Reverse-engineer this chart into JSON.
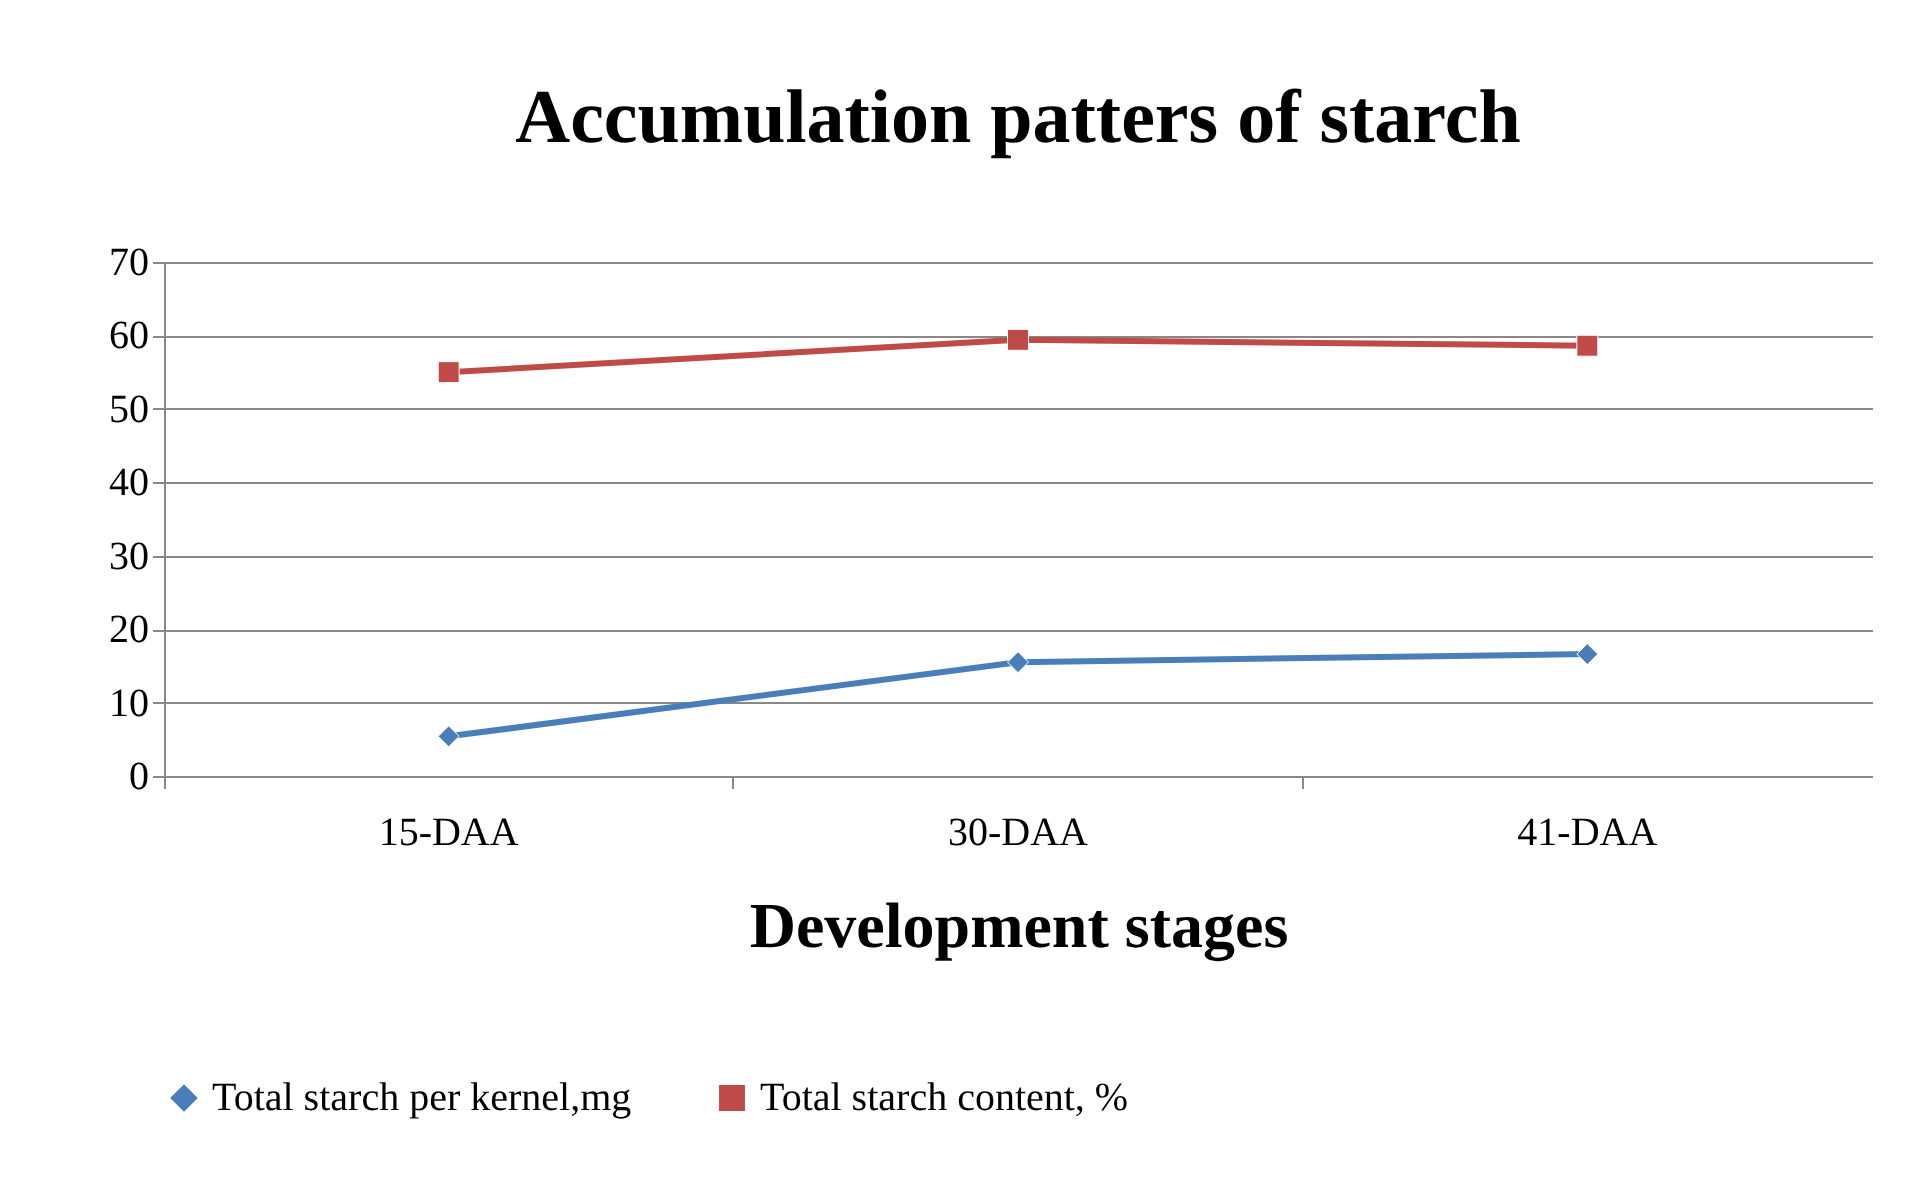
{
  "chart_data": {
    "type": "line",
    "title": "Accumulation patters of starch",
    "xlabel": "Development stages",
    "categories": [
      "15-DAA",
      "30-DAA",
      "41-DAA"
    ],
    "series": [
      {
        "name": "Total starch per kernel,mg",
        "color": "#4a7ebb",
        "marker": "diamond",
        "values": [
          5.4,
          15.5,
          16.6
        ]
      },
      {
        "name": "Total starch content, %",
        "color": "#be4b48",
        "marker": "square",
        "values": [
          55.0,
          59.4,
          58.6
        ]
      }
    ],
    "ylim": [
      0,
      70
    ],
    "yticks": [
      0,
      10,
      20,
      30,
      40,
      50,
      60,
      70
    ],
    "grid": "y",
    "legend": "bottom"
  }
}
